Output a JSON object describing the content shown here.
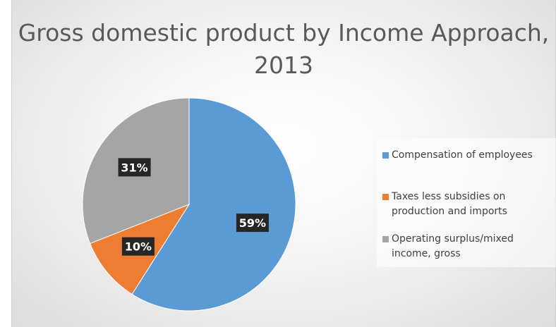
{
  "chart_data": {
    "type": "pie",
    "title": "Gross domestic product by Income Approach, 2013",
    "categories": [
      "Compensation of employees",
      "Taxes less subsidies on production and imports",
      "Operating surplus/mixed income, gross"
    ],
    "values": [
      59,
      10,
      31
    ],
    "data_labels": [
      "59%",
      "10%",
      "31%"
    ],
    "colors": [
      "#5b9bd5",
      "#ed7d31",
      "#a5a5a5"
    ],
    "legend_position": "right",
    "start_angle": "12 o'clock",
    "direction": "clockwise"
  }
}
